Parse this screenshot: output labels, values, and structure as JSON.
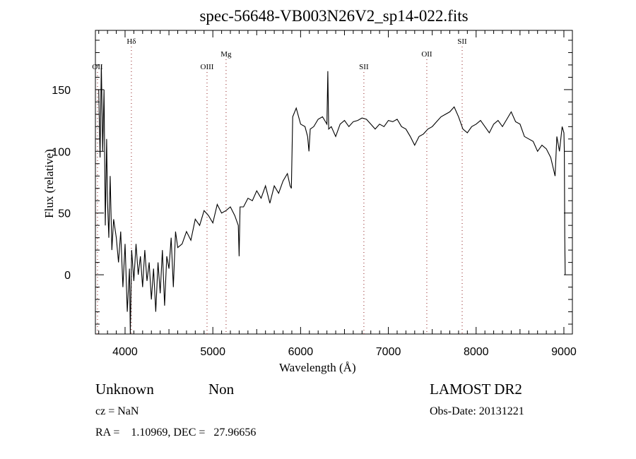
{
  "chart_data": {
    "type": "line",
    "title": "spec-56648-VB003N26V2_sp14-022.fits",
    "xlabel": "Wavelength (Å)",
    "ylabel": "Flux (relative)",
    "xlim": [
      3662,
      9097
    ],
    "ylim": [
      -48,
      198
    ],
    "xticks": [
      4000,
      5000,
      6000,
      7000,
      8000,
      9000
    ],
    "yticks": [
      0,
      50,
      100,
      150
    ],
    "grid": false,
    "lines": [
      {
        "label": "OII",
        "x": 3686,
        "level": 3
      },
      {
        "label": "Hδ",
        "x": 4072,
        "level": 1
      },
      {
        "label": "OIII",
        "x": 4934,
        "level": 3
      },
      {
        "label": "Mg",
        "x": 5151,
        "level": 2
      },
      {
        "label": "SII",
        "x": 6721,
        "level": 3
      },
      {
        "label": "OII",
        "x": 7438,
        "level": 2
      },
      {
        "label": "SII",
        "x": 7841,
        "level": 1
      }
    ],
    "series": [
      {
        "name": "flux",
        "x": [
          3700,
          3715,
          3730,
          3745,
          3760,
          3775,
          3790,
          3800,
          3815,
          3830,
          3850,
          3870,
          3900,
          3925,
          3950,
          3975,
          4000,
          4025,
          4050,
          4060,
          4075,
          4100,
          4125,
          4150,
          4175,
          4200,
          4225,
          4250,
          4275,
          4300,
          4325,
          4350,
          4375,
          4400,
          4425,
          4450,
          4475,
          4500,
          4525,
          4550,
          4575,
          4600,
          4650,
          4700,
          4750,
          4800,
          4850,
          4900,
          4950,
          5000,
          5050,
          5100,
          5150,
          5200,
          5250,
          5290,
          5300,
          5310,
          5350,
          5400,
          5450,
          5500,
          5550,
          5600,
          5650,
          5700,
          5750,
          5800,
          5850,
          5880,
          5895,
          5910,
          5950,
          6000,
          6050,
          6080,
          6095,
          6110,
          6150,
          6200,
          6250,
          6300,
          6310,
          6320,
          6350,
          6400,
          6450,
          6500,
          6550,
          6600,
          6650,
          6700,
          6750,
          6800,
          6850,
          6900,
          6950,
          7000,
          7050,
          7100,
          7150,
          7200,
          7250,
          7300,
          7350,
          7400,
          7450,
          7500,
          7550,
          7600,
          7650,
          7700,
          7750,
          7800,
          7850,
          7900,
          7950,
          8000,
          8050,
          8100,
          8150,
          8200,
          8250,
          8300,
          8350,
          8400,
          8450,
          8500,
          8550,
          8600,
          8650,
          8700,
          8750,
          8800,
          8850,
          8900,
          8920,
          8950,
          8980,
          9000,
          9005,
          9010,
          9015
        ],
        "y": [
          150,
          95,
          170,
          100,
          150,
          40,
          110,
          60,
          30,
          80,
          20,
          45,
          30,
          10,
          35,
          -10,
          25,
          -30,
          5,
          -48,
          20,
          -5,
          25,
          0,
          15,
          -10,
          20,
          -5,
          10,
          -20,
          5,
          -30,
          10,
          -15,
          20,
          -25,
          15,
          5,
          30,
          -10,
          35,
          22,
          25,
          35,
          28,
          45,
          40,
          52,
          48,
          42,
          57,
          50,
          52,
          55,
          48,
          40,
          15,
          55,
          55,
          62,
          60,
          68,
          62,
          72,
          58,
          72,
          66,
          76,
          82,
          72,
          70,
          128,
          135,
          122,
          120,
          112,
          100,
          118,
          120,
          126,
          128,
          122,
          165,
          118,
          120,
          112,
          122,
          125,
          120,
          124,
          125,
          127,
          126,
          122,
          118,
          122,
          120,
          125,
          124,
          126,
          120,
          118,
          112,
          105,
          112,
          114,
          118,
          120,
          124,
          128,
          130,
          132,
          136,
          128,
          118,
          115,
          120,
          122,
          125,
          120,
          115,
          122,
          125,
          120,
          126,
          132,
          124,
          122,
          112,
          110,
          108,
          100,
          105,
          102,
          95,
          80,
          112,
          100,
          120,
          115,
          100,
          30,
          0
        ]
      }
    ]
  },
  "footer": {
    "object_class": "Unknown",
    "subclass": "Non",
    "survey": "LAMOST DR2",
    "redshift": "cz = NaN",
    "obs_date": "Obs-Date: 20131221",
    "coords": "RA =    1.10969, DEC =   27.96656"
  }
}
